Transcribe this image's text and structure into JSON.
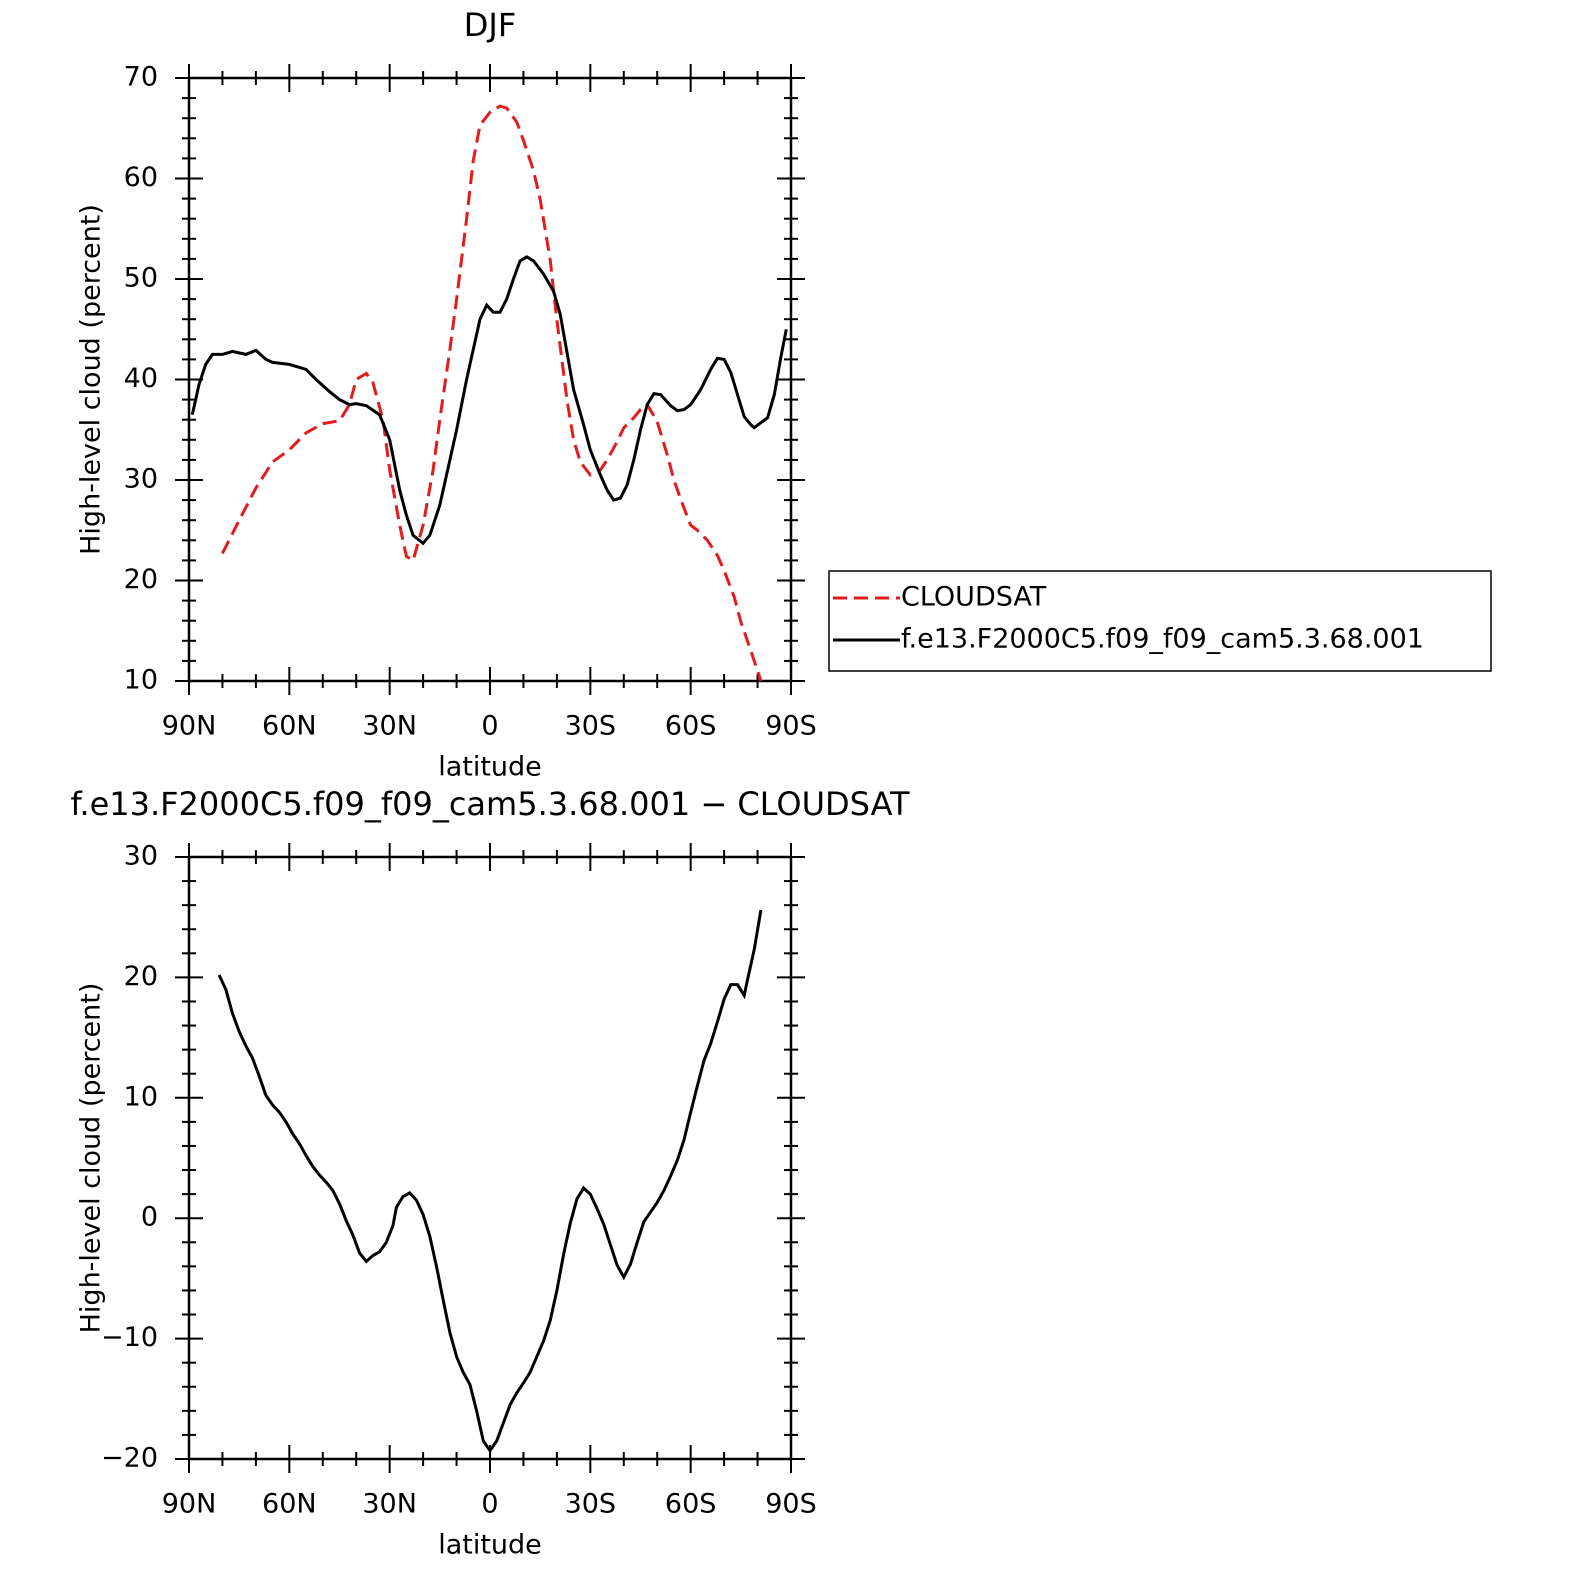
{
  "chart_data": [
    {
      "type": "line",
      "title": "DJF",
      "xlabel": "latitude",
      "ylabel": "High-level cloud (percent)",
      "xlim": [
        90,
        -90
      ],
      "xticks": [
        {
          "value": 90,
          "label": "90N"
        },
        {
          "value": 60,
          "label": "60N"
        },
        {
          "value": 30,
          "label": "30N"
        },
        0,
        {
          "value": -30,
          "label": "30S"
        },
        {
          "value": -60,
          "label": "60S"
        },
        {
          "value": -90,
          "label": "90S"
        }
      ],
      "ylim": [
        10,
        70
      ],
      "yticks": [
        10,
        20,
        30,
        40,
        50,
        60,
        70
      ],
      "legend": "right",
      "series": [
        {
          "name": "CLOUDSAT",
          "color": "#e41a1c",
          "dashed": true,
          "x": [
            80,
            75,
            70,
            65,
            60,
            55,
            50,
            45,
            42,
            40,
            37,
            35,
            32,
            30,
            27,
            25,
            23,
            20,
            17,
            15,
            12,
            10,
            7,
            5,
            3,
            0,
            -3,
            -5,
            -8,
            -10,
            -13,
            -15,
            -18,
            -20,
            -23,
            -25,
            -27,
            -30,
            -33,
            -35,
            -38,
            -40,
            -43,
            -45,
            -47,
            -50,
            -53,
            -55,
            -58,
            -60,
            -62,
            -65,
            -68,
            -70,
            -73,
            -75,
            -78,
            -81
          ],
          "values": [
            22.7,
            26,
            29.2,
            31.8,
            33,
            34.7,
            35.6,
            35.9,
            37.5,
            40,
            40.6,
            39.7,
            36,
            31,
            25.5,
            22.4,
            22,
            25.5,
            31,
            36,
            43,
            48,
            56,
            61.8,
            65.3,
            66.6,
            67.2,
            67,
            65.6,
            63.8,
            60.8,
            57.9,
            51.9,
            45.9,
            38,
            34,
            31.8,
            30.5,
            31,
            32,
            33.8,
            35.2,
            36.2,
            37,
            37.5,
            35.8,
            32.5,
            30,
            27.2,
            25.5,
            25,
            24,
            22.5,
            21,
            18.4,
            15.9,
            13,
            10
          ]
        },
        {
          "name": "f.e13.F2000C5.f09_f09_cam5.3.68.001",
          "color": "#000000",
          "dashed": false,
          "x": [
            89,
            87,
            85,
            83,
            80,
            77,
            73,
            70,
            67,
            65,
            60,
            55,
            52,
            48,
            45,
            42,
            40,
            37,
            33,
            30,
            27,
            25,
            23,
            20,
            18,
            15,
            12,
            10,
            7,
            5,
            3,
            1,
            -1,
            -3,
            -5,
            -7,
            -9,
            -11,
            -13,
            -16,
            -19,
            -21,
            -25,
            -28,
            -30,
            -33,
            -35,
            -37,
            -39,
            -41,
            -43,
            -45,
            -47,
            -49,
            -51,
            -54,
            -56,
            -58,
            -60,
            -63,
            -66,
            -68,
            -70,
            -72,
            -74,
            -76,
            -78,
            -79,
            -81,
            -83,
            -85,
            -87,
            -88.6
          ],
          "values": [
            36.5,
            39.5,
            41.5,
            42.5,
            42.5,
            42.8,
            42.5,
            42.9,
            42,
            41.7,
            41.5,
            41,
            40,
            38.8,
            38,
            37.5,
            37.6,
            37.4,
            36.5,
            34,
            29,
            26.5,
            24.5,
            23.7,
            24.5,
            27.5,
            32,
            35,
            40,
            43,
            46,
            47.4,
            46.7,
            46.7,
            48,
            50,
            51.8,
            52.2,
            51.8,
            50.5,
            48.8,
            46.5,
            39,
            35.5,
            33,
            30.5,
            29,
            28,
            28.2,
            29.5,
            32,
            35,
            37.5,
            38.6,
            38.5,
            37.4,
            36.9,
            37,
            37.5,
            39,
            41,
            42.1,
            42,
            40.7,
            38.5,
            36.3,
            35.5,
            35.2,
            35.7,
            36.2,
            38.5,
            42.3,
            45
          ]
        }
      ]
    },
    {
      "type": "line",
      "title": "f.e13.F2000C5.f09_f09_cam5.3.68.001 − CLOUDSAT",
      "xlabel": "latitude",
      "ylabel": "High-level cloud (percent)",
      "xlim": [
        90,
        -90
      ],
      "xticks": [
        {
          "value": 90,
          "label": "90N"
        },
        {
          "value": 60,
          "label": "60N"
        },
        {
          "value": 30,
          "label": "30N"
        },
        0,
        {
          "value": -30,
          "label": "30S"
        },
        {
          "value": -60,
          "label": "60S"
        },
        {
          "value": -90,
          "label": "90S"
        }
      ],
      "ylim": [
        -20,
        30
      ],
      "yticks": [
        {
          "value": -20,
          "label": "−20"
        },
        {
          "value": -10,
          "label": "−10"
        },
        0,
        10,
        20,
        30
      ],
      "series": [
        {
          "color": "#000000",
          "dashed": false,
          "x": [
            81,
            79,
            77,
            75,
            73,
            71,
            69,
            67,
            65,
            63,
            61,
            59,
            57,
            55,
            53,
            51,
            49,
            47,
            45,
            43,
            41,
            39,
            37,
            35,
            33,
            31,
            29,
            28,
            26,
            24,
            22,
            20,
            18,
            16,
            14,
            12,
            10,
            8,
            6,
            4,
            2,
            0,
            -2,
            -4,
            -6,
            -8,
            -10,
            -12,
            -14,
            -16,
            -18,
            -20,
            -22,
            -24,
            -26,
            -28,
            -30,
            -32,
            -34,
            -36,
            -38,
            -40,
            -42,
            -44,
            -46,
            -48,
            -50,
            -52,
            -54,
            -56,
            -58,
            -60,
            -62,
            -64,
            -66,
            -68,
            -70,
            -72,
            -74,
            -76,
            -77,
            -79,
            -81
          ],
          "values": [
            20.2,
            19,
            17,
            15.5,
            14.3,
            13.3,
            11.8,
            10.2,
            9.4,
            8.8,
            8,
            7,
            6.2,
            5.2,
            4.3,
            3.6,
            3,
            2.3,
            1.2,
            -0.2,
            -1.4,
            -2.9,
            -3.6,
            -3.1,
            -2.8,
            -2,
            -0.6,
            0.9,
            1.8,
            2.1,
            1.5,
            0.3,
            -1.5,
            -4,
            -6.8,
            -9.5,
            -11.5,
            -12.8,
            -13.8,
            -16,
            -18.5,
            -19.3,
            -18.5,
            -17,
            -15.5,
            -14.5,
            -13.7,
            -12.8,
            -11.5,
            -10.2,
            -8.5,
            -6,
            -3,
            -0.4,
            1.6,
            2.5,
            2,
            0.8,
            -0.5,
            -2.2,
            -3.9,
            -4.9,
            -3.8,
            -2,
            -0.3,
            0.5,
            1.3,
            2.3,
            3.5,
            4.8,
            6.5,
            8.8,
            11,
            13.1,
            14.5,
            16.3,
            18.2,
            19.4,
            19.4,
            18.5,
            19.8,
            22.3,
            25.6
          ]
        }
      ]
    }
  ]
}
